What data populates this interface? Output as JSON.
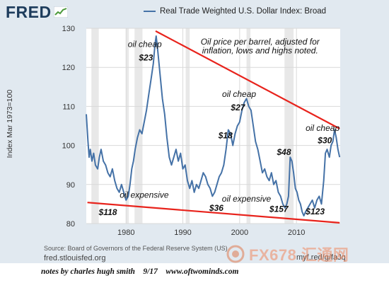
{
  "header": {
    "logo_text": "FRED",
    "legend_label": "Real Trade Weighted U.S. Dollar Index: Broad",
    "series_color": "#4572a7"
  },
  "source_text": "Source: Board of Governors of the Federal Reserve System (US)",
  "site_text": "fred.stlouisfed.org",
  "short_url": "myf.red/g/faJq",
  "watermark_text": "FX678 汇通网",
  "footer_notes": "notes by charles hugh smith    9/17    www.oftwominds.com",
  "chart_data": {
    "type": "line",
    "ylabel": "Index Mar 1973=100",
    "xlim": [
      1973,
      2017.7
    ],
    "ylim": [
      80,
      130
    ],
    "x_ticks": [
      1980,
      1990,
      2000,
      2010
    ],
    "y_ticks": [
      80,
      90,
      100,
      110,
      120,
      130
    ],
    "grid": true,
    "recessions": [
      [
        1973.9,
        1975.2
      ],
      [
        1980.0,
        1980.5
      ],
      [
        1981.5,
        1982.9
      ],
      [
        1990.5,
        1991.2
      ],
      [
        2001.2,
        2001.9
      ],
      [
        2007.9,
        2009.5
      ]
    ],
    "series": [
      {
        "name": "Real Trade Weighted U.S. Dollar Index: Broad",
        "color": "#4572a7",
        "x": [
          1973.0,
          1973.3,
          1973.5,
          1973.7,
          1974.0,
          1974.3,
          1974.6,
          1975.0,
          1975.3,
          1975.6,
          1976.0,
          1976.4,
          1976.8,
          1977.2,
          1977.6,
          1978.0,
          1978.4,
          1978.8,
          1979.2,
          1979.6,
          1980.0,
          1980.4,
          1980.7,
          1981.0,
          1981.3,
          1981.6,
          1982.0,
          1982.4,
          1982.8,
          1983.2,
          1983.6,
          1984.0,
          1984.4,
          1984.8,
          1985.1,
          1985.3,
          1985.6,
          1986.0,
          1986.4,
          1986.8,
          1987.2,
          1987.6,
          1988.0,
          1988.4,
          1988.8,
          1989.2,
          1989.6,
          1990.0,
          1990.4,
          1990.8,
          1991.2,
          1991.6,
          1992.0,
          1992.4,
          1992.8,
          1993.2,
          1993.6,
          1994.0,
          1994.4,
          1994.8,
          1995.2,
          1995.6,
          1996.0,
          1996.4,
          1996.8,
          1997.2,
          1997.6,
          1998.0,
          1998.4,
          1998.8,
          1999.2,
          1999.6,
          2000.0,
          2000.4,
          2000.8,
          2001.2,
          2001.6,
          2002.0,
          2002.4,
          2002.8,
          2003.2,
          2003.6,
          2004.0,
          2004.4,
          2004.8,
          2005.2,
          2005.6,
          2006.0,
          2006.4,
          2006.8,
          2007.2,
          2007.6,
          2008.0,
          2008.3,
          2008.6,
          2008.9,
          2009.2,
          2009.5,
          2009.8,
          2010.1,
          2010.4,
          2010.7,
          2011.0,
          2011.3,
          2011.6,
          2012.0,
          2012.4,
          2012.8,
          2013.2,
          2013.6,
          2014.0,
          2014.4,
          2014.8,
          2015.1,
          2015.4,
          2015.8,
          2016.1,
          2016.4,
          2016.7,
          2017.0,
          2017.3,
          2017.6
        ],
        "values": [
          108,
          101,
          97,
          99,
          96,
          98,
          95,
          94,
          97,
          99,
          96,
          95,
          93,
          92,
          94,
          91,
          89,
          88,
          90,
          88,
          86,
          87,
          90,
          94,
          96,
          99,
          102,
          104,
          103,
          106,
          109,
          113,
          117,
          121,
          126,
          128,
          124,
          118,
          112,
          108,
          102,
          97,
          95,
          97,
          99,
          96,
          98,
          94,
          95,
          91,
          89,
          91,
          88,
          90,
          89,
          91,
          93,
          92,
          90,
          89,
          87,
          88,
          90,
          92,
          93,
          95,
          99,
          104,
          103,
          100,
          103,
          105,
          106,
          109,
          111,
          112,
          110,
          109,
          105,
          101,
          99,
          96,
          93,
          94,
          92,
          91,
          93,
          90,
          91,
          88,
          87,
          85,
          84,
          85,
          87,
          97,
          96,
          93,
          89,
          88,
          86,
          85,
          83,
          82,
          83,
          84,
          85,
          86,
          84,
          86,
          87,
          85,
          91,
          98,
          99,
          97,
          100,
          101,
          104,
          102,
          99,
          97
        ]
      }
    ],
    "trendlines": [
      {
        "name": "upper",
        "color": "#e8231c",
        "x": [
          1985.2,
          2017.6
        ],
        "y": [
          129.3,
          104.3
        ]
      },
      {
        "name": "lower",
        "color": "#e8231c",
        "x": [
          1973.2,
          2017.6
        ],
        "y": [
          85.4,
          80.2
        ]
      }
    ],
    "annotations": [
      {
        "id": "note",
        "text": "Oil price per barrel, adjusted for",
        "x": 2003.6,
        "y": 125.8,
        "size": 12
      },
      {
        "id": "note2",
        "text": "inflation, lows and highs noted.",
        "x": 2003.6,
        "y": 123.6,
        "size": 12
      },
      {
        "id": "oil-cheap-1",
        "text": "oil cheap",
        "x": 1983.3,
        "y": 125.2,
        "size": 12
      },
      {
        "id": "price-23",
        "text": "$23",
        "x": 1983.5,
        "y": 121.8,
        "size": 12,
        "bold": true
      },
      {
        "id": "oil-cheap-2",
        "text": "oil cheap",
        "x": 1999.9,
        "y": 112.4,
        "size": 12
      },
      {
        "id": "price-27",
        "text": "$27",
        "x": 1999.7,
        "y": 109.0,
        "size": 12,
        "bold": true
      },
      {
        "id": "price-18",
        "text": "$18",
        "x": 1997.5,
        "y": 101.8,
        "size": 12,
        "bold": true
      },
      {
        "id": "price-48",
        "text": "$48",
        "x": 2007.8,
        "y": 97.6,
        "size": 12,
        "bold": true
      },
      {
        "id": "oil-cheap-3",
        "text": "oil cheap",
        "x": 2014.6,
        "y": 103.7,
        "size": 12
      },
      {
        "id": "price-30",
        "text": "$30",
        "x": 2015.0,
        "y": 100.6,
        "size": 12,
        "bold": true
      },
      {
        "id": "oil-expensive-1",
        "text": "oil expensive",
        "x": 1983.2,
        "y": 86.6,
        "size": 12
      },
      {
        "id": "price-118",
        "text": "$118",
        "x": 1976.8,
        "y": 82.2,
        "size": 12,
        "bold": true
      },
      {
        "id": "oil-expensive-2",
        "text": "oil expensive",
        "x": 2001.2,
        "y": 85.6,
        "size": 12
      },
      {
        "id": "price-36",
        "text": "$36",
        "x": 1995.9,
        "y": 83.3,
        "size": 12,
        "bold": true
      },
      {
        "id": "price-157",
        "text": "$157",
        "x": 2006.9,
        "y": 83.0,
        "size": 12,
        "bold": true
      },
      {
        "id": "price-123",
        "text": "$123",
        "x": 2013.3,
        "y": 82.4,
        "size": 12,
        "bold": true
      }
    ]
  }
}
